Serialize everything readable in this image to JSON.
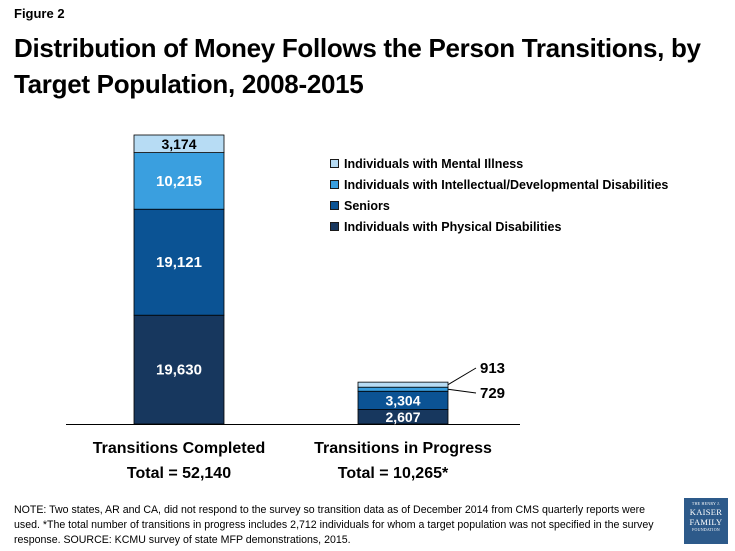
{
  "figure_label": "Figure 2",
  "title": "Distribution of Money Follows the Person Transitions, by Target Population, 2008-2015",
  "chart_data": {
    "type": "bar",
    "stacked": true,
    "categories": [
      "Transitions Completed",
      "Transitions in Progress"
    ],
    "category_totals": [
      "Total = 52,140",
      "Total = 10,265*"
    ],
    "series": [
      {
        "name": "Individuals with Physical Disabilities",
        "values": [
          19630,
          2607
        ],
        "labels": [
          "19,630",
          "2,607"
        ],
        "color": "#17375e"
      },
      {
        "name": "Seniors",
        "values": [
          19121,
          3304
        ],
        "labels": [
          "19,121",
          "3,304"
        ],
        "color": "#0b5394"
      },
      {
        "name": "Individuals with Intellectual/Developmental Disabilities",
        "values": [
          10215,
          729
        ],
        "labels": [
          "10,215",
          "729"
        ],
        "color": "#3a9fdf"
      },
      {
        "name": "Individuals with Mental Illness",
        "values": [
          3174,
          913
        ],
        "labels": [
          "3,174",
          "913"
        ],
        "color": "#b7dcf4"
      }
    ],
    "legend_order": [
      3,
      2,
      1,
      0
    ],
    "legend_position": "right",
    "ylim": [
      0,
      52140
    ],
    "grid": false
  },
  "note": "NOTE: Two states, AR and CA, did not respond to the survey so transition data as of December 2014 from CMS quarterly reports were used. *The total number of transitions in progress includes 2,712 individuals for whom a target population was not specified in the survey response. SOURCE: KCMU survey of state MFP demonstrations, 2015.",
  "logo": {
    "line1": "THE HENRY J.",
    "line2": "KAISER",
    "line3": "FAMILY",
    "line4": "FOUNDATION"
  }
}
